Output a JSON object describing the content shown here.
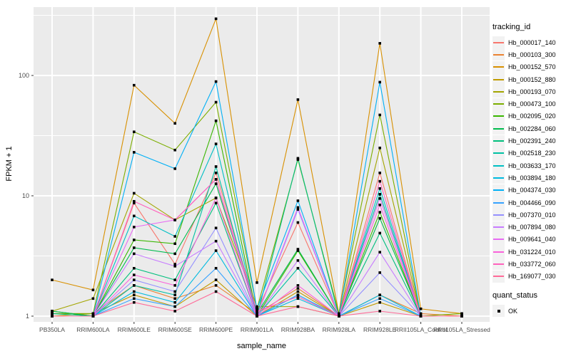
{
  "legend": {
    "tracking_title": "tracking_id",
    "quant_title": "quant_status",
    "ok_label": "OK"
  },
  "axes": {
    "x_tick_color": "#4D4D4D",
    "y_tick_labels": [
      "1",
      "10",
      "100"
    ]
  },
  "chart_data": {
    "type": "line",
    "xlabel": "sample_name",
    "ylabel": "FPKM + 1",
    "y_scale": "log10",
    "y_ticks": [
      1,
      10,
      100
    ],
    "y_minor_ticks": [
      3.162,
      31.62,
      316.2
    ],
    "ylim": [
      0.9,
      370
    ],
    "grid": true,
    "legend_position": "right",
    "panel_bg": "#EBEBEB",
    "grid_color": "#FFFFFF",
    "point_color": "#000000",
    "categories": [
      "PB350LA",
      "RRIM600LA",
      "RRIM600LE",
      "RRIM600SE",
      "RRIM600PE",
      "RRIM901LA",
      "RRIM928BA",
      "RRIM928LA",
      "RRIM928LE",
      "RRII105LA_Control",
      "RRII105LA_Stressed"
    ],
    "series": [
      {
        "name": "Hb_000017_140",
        "color": "#F8766D",
        "values": [
          1.0,
          1.0,
          8.7,
          2.7,
          15.5,
          1.1,
          6.0,
          1.0,
          15.5,
          1.0,
          1.0
        ]
      },
      {
        "name": "Hb_000103_300",
        "color": "#EA8331",
        "values": [
          1.05,
          1.05,
          1.8,
          1.4,
          1.8,
          1.05,
          1.7,
          1.0,
          1.5,
          1.05,
          1.0
        ]
      },
      {
        "name": "Hb_000152_570",
        "color": "#D89000",
        "values": [
          2.0,
          1.65,
          83,
          40,
          296,
          1.9,
          63,
          1.05,
          185,
          1.15,
          1.05
        ]
      },
      {
        "name": "Hb_000152_880",
        "color": "#C09B00",
        "values": [
          1.0,
          1.05,
          1.5,
          1.2,
          2.0,
          1.0,
          1.6,
          1.0,
          1.3,
          1.0,
          1.0
        ]
      },
      {
        "name": "Hb_000193_070",
        "color": "#A3A500",
        "values": [
          1.1,
          1.4,
          10.5,
          6.3,
          9.6,
          1.2,
          1.2,
          1.0,
          25,
          1.0,
          1.0
        ]
      },
      {
        "name": "Hb_000473_100",
        "color": "#7CAE00",
        "values": [
          1.05,
          1.05,
          34,
          24,
          60,
          1.15,
          20,
          1.05,
          47,
          1.0,
          1.05
        ]
      },
      {
        "name": "Hb_002095_020",
        "color": "#39B600",
        "values": [
          1.1,
          1.0,
          4.3,
          4.0,
          42,
          1.0,
          3.5,
          1.0,
          7.3,
          1.0,
          1.0
        ]
      },
      {
        "name": "Hb_002284_060",
        "color": "#00BB4E",
        "values": [
          1.1,
          1.0,
          3.7,
          3.3,
          12.6,
          1.05,
          3.6,
          1.0,
          6.5,
          1.0,
          1.0
        ]
      },
      {
        "name": "Hb_002391_240",
        "color": "#00BF7D",
        "values": [
          1.05,
          1.0,
          2.5,
          2.0,
          8.7,
          1.0,
          20.5,
          1.0,
          4.9,
          1.0,
          1.0
        ]
      },
      {
        "name": "Hb_002518_230",
        "color": "#00C1A3",
        "values": [
          1.0,
          1.0,
          1.8,
          1.5,
          17.5,
          1.0,
          2.5,
          1.0,
          10.3,
          1.0,
          1.0
        ]
      },
      {
        "name": "Hb_003633_170",
        "color": "#00BFC4",
        "values": [
          1.0,
          1.0,
          6.8,
          4.6,
          27,
          1.0,
          1.5,
          1.0,
          11.5,
          1.0,
          1.0
        ]
      },
      {
        "name": "Hb_003894_180",
        "color": "#00BAE0",
        "values": [
          1.0,
          1.0,
          1.6,
          1.3,
          3.5,
          1.0,
          1.4,
          1.0,
          1.5,
          1.0,
          1.0
        ]
      },
      {
        "name": "Hb_004374_030",
        "color": "#00B0F6",
        "values": [
          1.0,
          1.0,
          23,
          16.8,
          89,
          1.15,
          9.1,
          1.0,
          88,
          1.0,
          1.0
        ]
      },
      {
        "name": "Hb_004466_090",
        "color": "#35A2FF",
        "values": [
          1.0,
          1.0,
          1.4,
          1.2,
          2.5,
          1.0,
          1.5,
          1.0,
          1.4,
          1.0,
          1.0
        ]
      },
      {
        "name": "Hb_007370_010",
        "color": "#9590FF",
        "values": [
          1.0,
          1.0,
          2.0,
          1.6,
          5.4,
          1.0,
          7.7,
          1.0,
          2.3,
          1.0,
          1.0
        ]
      },
      {
        "name": "Hb_007894_080",
        "color": "#C77CFF",
        "values": [
          1.0,
          1.0,
          3.3,
          2.6,
          4.2,
          1.0,
          2.9,
          1.0,
          3.4,
          1.0,
          1.0
        ]
      },
      {
        "name": "Hb_009641_040",
        "color": "#E76BF3",
        "values": [
          1.0,
          1.0,
          5.5,
          6.3,
          13.7,
          1.0,
          8.0,
          1.0,
          9.5,
          1.0,
          1.0
        ]
      },
      {
        "name": "Hb_031224_010",
        "color": "#FA62DB",
        "values": [
          1.0,
          1.0,
          2.2,
          1.8,
          9.6,
          1.0,
          1.8,
          1.0,
          8.4,
          1.0,
          1.0
        ]
      },
      {
        "name": "Hb_033772_060",
        "color": "#FF62BC",
        "values": [
          1.0,
          1.0,
          9.0,
          6.3,
          13.7,
          1.1,
          1.45,
          1.0,
          13.2,
          1.0,
          1.0
        ]
      },
      {
        "name": "Hb_169077_030",
        "color": "#FF6A98",
        "values": [
          1.0,
          1.0,
          1.3,
          1.1,
          1.6,
          1.0,
          1.2,
          1.0,
          1.1,
          1.0,
          1.0
        ]
      }
    ]
  }
}
